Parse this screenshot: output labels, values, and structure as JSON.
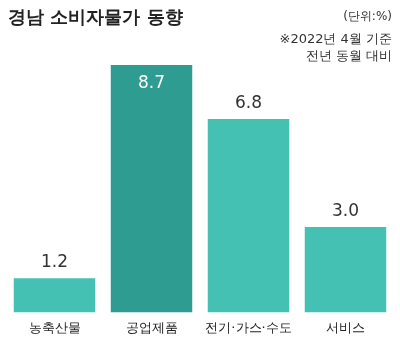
{
  "chart_data": {
    "type": "bar",
    "title": "경남 소비자물가 동향",
    "annotations": [
      "(단위:%)",
      "※2022년 4월 기준",
      "전년 동월 대비"
    ],
    "categories": [
      "농축산물",
      "공업제품",
      "전기·가스·수도",
      "서비스"
    ],
    "values": [
      1.2,
      8.7,
      6.8,
      3.0
    ],
    "value_labels": [
      "1.2",
      "8.7",
      "6.8",
      "3.0"
    ],
    "colors": [
      "#45c1b4",
      "#2f9c92",
      "#45c1b4",
      "#45c1b4"
    ],
    "ylim": [
      0,
      10
    ],
    "grid": false,
    "data_labels": true,
    "tick_labels": "x"
  }
}
